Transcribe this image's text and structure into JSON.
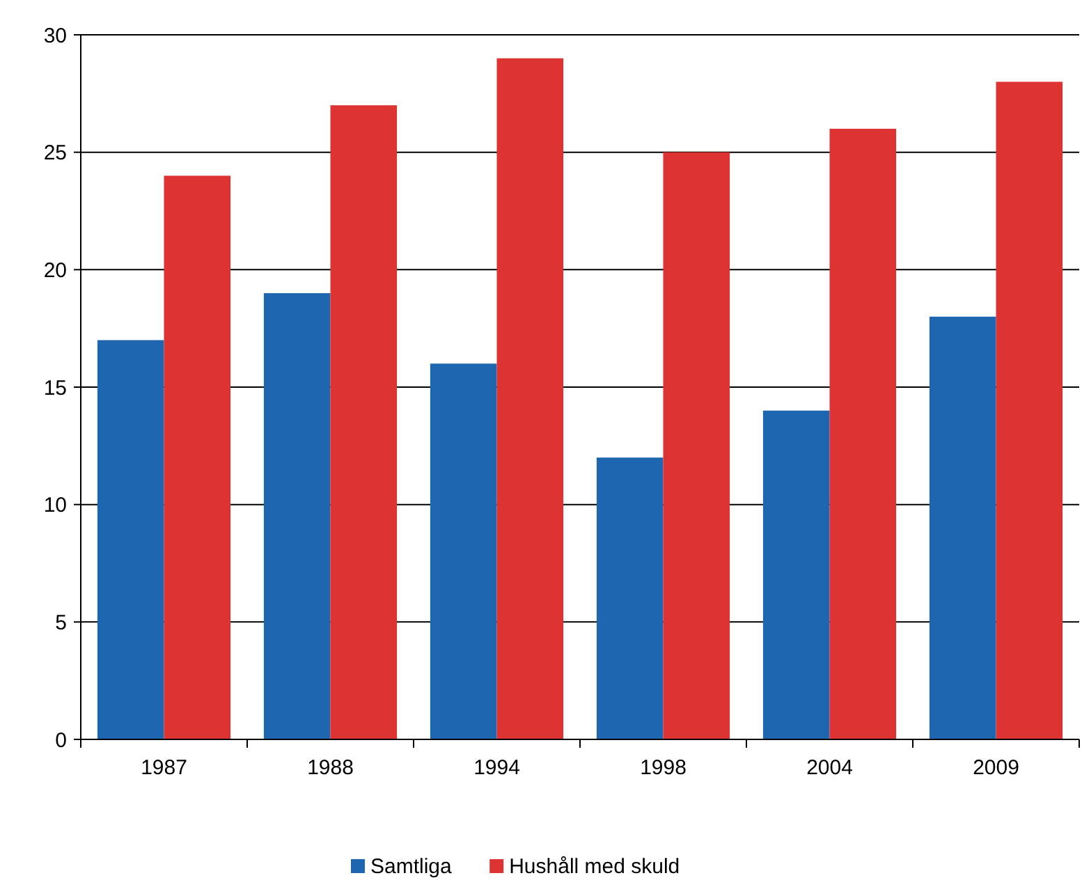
{
  "chart_data": {
    "type": "bar",
    "categories": [
      "1987",
      "1988",
      "1994",
      "1998",
      "2004",
      "2009"
    ],
    "series": [
      {
        "name": "Samtliga",
        "color": "#1f66b0",
        "values": [
          17,
          19,
          16,
          12,
          14,
          18
        ]
      },
      {
        "name": "Hushåll med skuld",
        "color": "#dd3333",
        "values": [
          24,
          27,
          29,
          25,
          26,
          28
        ]
      }
    ],
    "ylim": [
      0,
      30
    ],
    "yticks": [
      0,
      5,
      10,
      15,
      20,
      25,
      30
    ],
    "grid": "y",
    "legend": "bottom"
  }
}
